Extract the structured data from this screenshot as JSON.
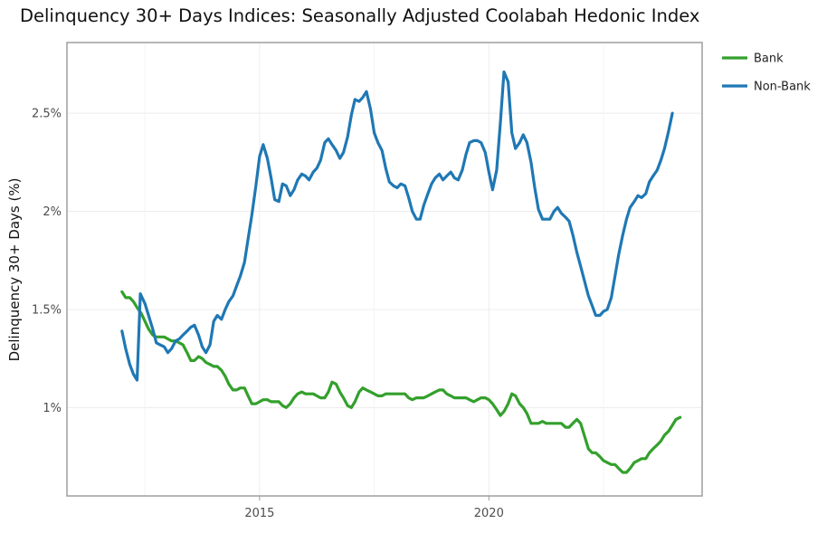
{
  "chart_data": {
    "type": "line",
    "title": "Delinquency 30+ Days Indices: Seasonally Adjusted Coolabah Hedonic Index",
    "xlabel": "",
    "ylabel": "Delinquency 30+ Days (%)",
    "xlim": [
      2010.8,
      2024.65
    ],
    "ylim": [
      0.55,
      2.86
    ],
    "x_ticks": [
      2015,
      2020
    ],
    "x_tick_labels": [
      "2015",
      "2020"
    ],
    "y_ticks": [
      1.0,
      1.5,
      2.0,
      2.5
    ],
    "y_tick_labels": [
      "1%",
      "1.5%",
      "2%",
      "2.5%"
    ],
    "grid": true,
    "legend_position": "top-right",
    "series": [
      {
        "name": "Bank",
        "color": "#33a02c",
        "points": [
          [
            2012.0,
            1.59
          ],
          [
            2012.08,
            1.56
          ],
          [
            2012.17,
            1.56
          ],
          [
            2012.25,
            1.54
          ],
          [
            2012.33,
            1.51
          ],
          [
            2012.42,
            1.48
          ],
          [
            2012.5,
            1.44
          ],
          [
            2012.58,
            1.4
          ],
          [
            2012.67,
            1.37
          ],
          [
            2012.75,
            1.36
          ],
          [
            2012.83,
            1.36
          ],
          [
            2012.92,
            1.36
          ],
          [
            2013.0,
            1.35
          ],
          [
            2013.08,
            1.34
          ],
          [
            2013.17,
            1.34
          ],
          [
            2013.25,
            1.33
          ],
          [
            2013.33,
            1.32
          ],
          [
            2013.42,
            1.28
          ],
          [
            2013.5,
            1.24
          ],
          [
            2013.58,
            1.24
          ],
          [
            2013.67,
            1.26
          ],
          [
            2013.75,
            1.25
          ],
          [
            2013.83,
            1.23
          ],
          [
            2013.92,
            1.22
          ],
          [
            2014.0,
            1.21
          ],
          [
            2014.08,
            1.21
          ],
          [
            2014.17,
            1.19
          ],
          [
            2014.25,
            1.16
          ],
          [
            2014.33,
            1.12
          ],
          [
            2014.42,
            1.09
          ],
          [
            2014.5,
            1.09
          ],
          [
            2014.58,
            1.1
          ],
          [
            2014.67,
            1.1
          ],
          [
            2014.75,
            1.06
          ],
          [
            2014.83,
            1.02
          ],
          [
            2014.92,
            1.02
          ],
          [
            2015.0,
            1.03
          ],
          [
            2015.08,
            1.04
          ],
          [
            2015.17,
            1.04
          ],
          [
            2015.25,
            1.03
          ],
          [
            2015.33,
            1.03
          ],
          [
            2015.42,
            1.03
          ],
          [
            2015.5,
            1.01
          ],
          [
            2015.58,
            1.0
          ],
          [
            2015.67,
            1.02
          ],
          [
            2015.75,
            1.05
          ],
          [
            2015.83,
            1.07
          ],
          [
            2015.92,
            1.08
          ],
          [
            2016.0,
            1.07
          ],
          [
            2016.08,
            1.07
          ],
          [
            2016.17,
            1.07
          ],
          [
            2016.25,
            1.06
          ],
          [
            2016.33,
            1.05
          ],
          [
            2016.42,
            1.05
          ],
          [
            2016.5,
            1.08
          ],
          [
            2016.58,
            1.13
          ],
          [
            2016.67,
            1.12
          ],
          [
            2016.75,
            1.08
          ],
          [
            2016.83,
            1.05
          ],
          [
            2016.92,
            1.01
          ],
          [
            2017.0,
            1.0
          ],
          [
            2017.08,
            1.03
          ],
          [
            2017.17,
            1.08
          ],
          [
            2017.25,
            1.1
          ],
          [
            2017.33,
            1.09
          ],
          [
            2017.42,
            1.08
          ],
          [
            2017.5,
            1.07
          ],
          [
            2017.58,
            1.06
          ],
          [
            2017.67,
            1.06
          ],
          [
            2017.75,
            1.07
          ],
          [
            2017.83,
            1.07
          ],
          [
            2017.92,
            1.07
          ],
          [
            2018.0,
            1.07
          ],
          [
            2018.08,
            1.07
          ],
          [
            2018.17,
            1.07
          ],
          [
            2018.25,
            1.05
          ],
          [
            2018.33,
            1.04
          ],
          [
            2018.42,
            1.05
          ],
          [
            2018.5,
            1.05
          ],
          [
            2018.58,
            1.05
          ],
          [
            2018.67,
            1.06
          ],
          [
            2018.75,
            1.07
          ],
          [
            2018.83,
            1.08
          ],
          [
            2018.92,
            1.09
          ],
          [
            2019.0,
            1.09
          ],
          [
            2019.08,
            1.07
          ],
          [
            2019.17,
            1.06
          ],
          [
            2019.25,
            1.05
          ],
          [
            2019.33,
            1.05
          ],
          [
            2019.42,
            1.05
          ],
          [
            2019.5,
            1.05
          ],
          [
            2019.58,
            1.04
          ],
          [
            2019.67,
            1.03
          ],
          [
            2019.75,
            1.04
          ],
          [
            2019.83,
            1.05
          ],
          [
            2019.92,
            1.05
          ],
          [
            2020.0,
            1.04
          ],
          [
            2020.08,
            1.02
          ],
          [
            2020.17,
            0.99
          ],
          [
            2020.25,
            0.96
          ],
          [
            2020.33,
            0.98
          ],
          [
            2020.42,
            1.02
          ],
          [
            2020.5,
            1.07
          ],
          [
            2020.58,
            1.06
          ],
          [
            2020.67,
            1.02
          ],
          [
            2020.75,
            1.0
          ],
          [
            2020.83,
            0.97
          ],
          [
            2020.92,
            0.92
          ],
          [
            2021.0,
            0.92
          ],
          [
            2021.08,
            0.92
          ],
          [
            2021.17,
            0.93
          ],
          [
            2021.25,
            0.92
          ],
          [
            2021.33,
            0.92
          ],
          [
            2021.42,
            0.92
          ],
          [
            2021.5,
            0.92
          ],
          [
            2021.58,
            0.92
          ],
          [
            2021.67,
            0.9
          ],
          [
            2021.75,
            0.9
          ],
          [
            2021.83,
            0.92
          ],
          [
            2021.92,
            0.94
          ],
          [
            2022.0,
            0.92
          ],
          [
            2022.08,
            0.86
          ],
          [
            2022.17,
            0.79
          ],
          [
            2022.25,
            0.77
          ],
          [
            2022.33,
            0.77
          ],
          [
            2022.42,
            0.75
          ],
          [
            2022.5,
            0.73
          ],
          [
            2022.58,
            0.72
          ],
          [
            2022.67,
            0.71
          ],
          [
            2022.75,
            0.71
          ],
          [
            2022.83,
            0.69
          ],
          [
            2022.92,
            0.67
          ],
          [
            2023.0,
            0.67
          ],
          [
            2023.08,
            0.69
          ],
          [
            2023.17,
            0.72
          ],
          [
            2023.25,
            0.73
          ],
          [
            2023.33,
            0.74
          ],
          [
            2023.42,
            0.74
          ],
          [
            2023.5,
            0.77
          ],
          [
            2023.58,
            0.79
          ],
          [
            2023.67,
            0.81
          ],
          [
            2023.75,
            0.83
          ],
          [
            2023.83,
            0.86
          ],
          [
            2023.92,
            0.88
          ],
          [
            2024.0,
            0.91
          ],
          [
            2024.08,
            0.94
          ],
          [
            2024.17,
            0.95
          ]
        ]
      },
      {
        "name": "Non-Bank",
        "color": "#1f78b4",
        "points": [
          [
            2012.0,
            1.39
          ],
          [
            2012.08,
            1.3
          ],
          [
            2012.17,
            1.22
          ],
          [
            2012.25,
            1.17
          ],
          [
            2012.33,
            1.14
          ],
          [
            2012.4,
            1.58
          ],
          [
            2012.5,
            1.53
          ],
          [
            2012.58,
            1.47
          ],
          [
            2012.67,
            1.4
          ],
          [
            2012.75,
            1.33
          ],
          [
            2012.83,
            1.32
          ],
          [
            2012.92,
            1.31
          ],
          [
            2013.0,
            1.28
          ],
          [
            2013.08,
            1.3
          ],
          [
            2013.17,
            1.34
          ],
          [
            2013.25,
            1.35
          ],
          [
            2013.33,
            1.37
          ],
          [
            2013.42,
            1.39
          ],
          [
            2013.5,
            1.41
          ],
          [
            2013.58,
            1.42
          ],
          [
            2013.67,
            1.37
          ],
          [
            2013.75,
            1.31
          ],
          [
            2013.83,
            1.28
          ],
          [
            2013.92,
            1.32
          ],
          [
            2014.0,
            1.44
          ],
          [
            2014.08,
            1.47
          ],
          [
            2014.17,
            1.45
          ],
          [
            2014.25,
            1.5
          ],
          [
            2014.33,
            1.54
          ],
          [
            2014.42,
            1.57
          ],
          [
            2014.5,
            1.62
          ],
          [
            2014.58,
            1.67
          ],
          [
            2014.67,
            1.74
          ],
          [
            2014.75,
            1.86
          ],
          [
            2014.83,
            1.98
          ],
          [
            2014.92,
            2.13
          ],
          [
            2015.0,
            2.28
          ],
          [
            2015.08,
            2.34
          ],
          [
            2015.17,
            2.27
          ],
          [
            2015.25,
            2.17
          ],
          [
            2015.33,
            2.06
          ],
          [
            2015.42,
            2.05
          ],
          [
            2015.5,
            2.14
          ],
          [
            2015.58,
            2.13
          ],
          [
            2015.67,
            2.08
          ],
          [
            2015.75,
            2.11
          ],
          [
            2015.83,
            2.16
          ],
          [
            2015.92,
            2.19
          ],
          [
            2016.0,
            2.18
          ],
          [
            2016.08,
            2.16
          ],
          [
            2016.17,
            2.2
          ],
          [
            2016.25,
            2.22
          ],
          [
            2016.33,
            2.26
          ],
          [
            2016.42,
            2.35
          ],
          [
            2016.5,
            2.37
          ],
          [
            2016.58,
            2.34
          ],
          [
            2016.67,
            2.31
          ],
          [
            2016.75,
            2.27
          ],
          [
            2016.83,
            2.3
          ],
          [
            2016.92,
            2.38
          ],
          [
            2017.0,
            2.49
          ],
          [
            2017.08,
            2.57
          ],
          [
            2017.17,
            2.56
          ],
          [
            2017.25,
            2.58
          ],
          [
            2017.33,
            2.61
          ],
          [
            2017.42,
            2.52
          ],
          [
            2017.5,
            2.4
          ],
          [
            2017.58,
            2.35
          ],
          [
            2017.67,
            2.31
          ],
          [
            2017.75,
            2.22
          ],
          [
            2017.83,
            2.15
          ],
          [
            2017.92,
            2.13
          ],
          [
            2018.0,
            2.12
          ],
          [
            2018.08,
            2.14
          ],
          [
            2018.17,
            2.13
          ],
          [
            2018.25,
            2.07
          ],
          [
            2018.33,
            2.0
          ],
          [
            2018.42,
            1.96
          ],
          [
            2018.5,
            1.96
          ],
          [
            2018.58,
            2.03
          ],
          [
            2018.67,
            2.09
          ],
          [
            2018.75,
            2.14
          ],
          [
            2018.83,
            2.17
          ],
          [
            2018.92,
            2.19
          ],
          [
            2019.0,
            2.16
          ],
          [
            2019.08,
            2.18
          ],
          [
            2019.17,
            2.2
          ],
          [
            2019.25,
            2.17
          ],
          [
            2019.33,
            2.16
          ],
          [
            2019.42,
            2.21
          ],
          [
            2019.5,
            2.29
          ],
          [
            2019.58,
            2.35
          ],
          [
            2019.67,
            2.36
          ],
          [
            2019.75,
            2.36
          ],
          [
            2019.83,
            2.35
          ],
          [
            2019.92,
            2.3
          ],
          [
            2020.0,
            2.2
          ],
          [
            2020.08,
            2.11
          ],
          [
            2020.17,
            2.21
          ],
          [
            2020.25,
            2.45
          ],
          [
            2020.33,
            2.71
          ],
          [
            2020.42,
            2.66
          ],
          [
            2020.5,
            2.4
          ],
          [
            2020.58,
            2.32
          ],
          [
            2020.67,
            2.35
          ],
          [
            2020.75,
            2.39
          ],
          [
            2020.83,
            2.35
          ],
          [
            2020.92,
            2.25
          ],
          [
            2021.0,
            2.12
          ],
          [
            2021.08,
            2.01
          ],
          [
            2021.17,
            1.96
          ],
          [
            2021.25,
            1.96
          ],
          [
            2021.33,
            1.96
          ],
          [
            2021.42,
            2.0
          ],
          [
            2021.5,
            2.02
          ],
          [
            2021.58,
            1.99
          ],
          [
            2021.67,
            1.97
          ],
          [
            2021.75,
            1.95
          ],
          [
            2021.83,
            1.88
          ],
          [
            2021.92,
            1.79
          ],
          [
            2022.0,
            1.72
          ],
          [
            2022.08,
            1.65
          ],
          [
            2022.17,
            1.57
          ],
          [
            2022.25,
            1.52
          ],
          [
            2022.33,
            1.47
          ],
          [
            2022.42,
            1.47
          ],
          [
            2022.5,
            1.49
          ],
          [
            2022.58,
            1.5
          ],
          [
            2022.67,
            1.56
          ],
          [
            2022.75,
            1.67
          ],
          [
            2022.83,
            1.78
          ],
          [
            2022.92,
            1.88
          ],
          [
            2023.0,
            1.96
          ],
          [
            2023.08,
            2.02
          ],
          [
            2023.17,
            2.05
          ],
          [
            2023.25,
            2.08
          ],
          [
            2023.33,
            2.07
          ],
          [
            2023.42,
            2.09
          ],
          [
            2023.5,
            2.15
          ],
          [
            2023.58,
            2.18
          ],
          [
            2023.67,
            2.21
          ],
          [
            2023.75,
            2.26
          ],
          [
            2023.83,
            2.32
          ],
          [
            2023.92,
            2.41
          ],
          [
            2024.0,
            2.5
          ]
        ]
      }
    ]
  }
}
